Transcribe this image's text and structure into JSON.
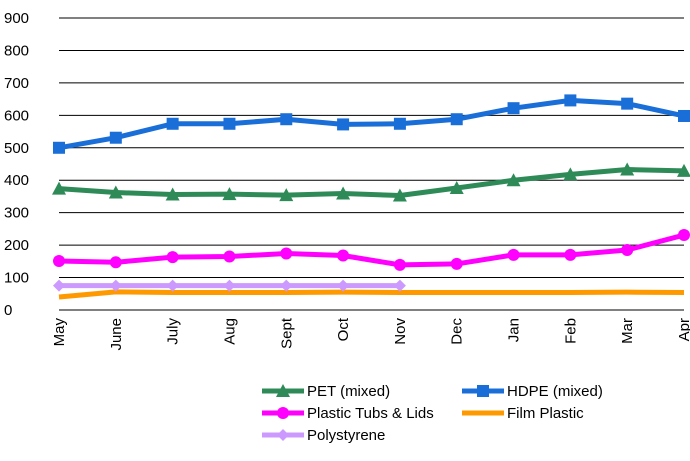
{
  "chart_data": {
    "type": "line",
    "title": "",
    "xlabel": "",
    "ylabel": "",
    "ylim": [
      0,
      900
    ],
    "yticks": [
      0,
      100,
      200,
      300,
      400,
      500,
      600,
      700,
      800,
      900
    ],
    "grid": true,
    "legend_position": "bottom",
    "categories": [
      "May",
      "June",
      "July",
      "Aug",
      "Sept",
      "Oct",
      "Nov",
      "Dec",
      "Jan",
      "Feb",
      "Mar",
      "Apr"
    ],
    "series": [
      {
        "name": "PET (mixed)",
        "color": "#2e8b57",
        "marker": "triangle",
        "values": [
          374,
          362,
          356,
          357,
          354,
          359,
          353,
          376,
          400,
          418,
          433,
          429
        ]
      },
      {
        "name": "HDPE (mixed)",
        "color": "#1a6ed8",
        "marker": "square",
        "values": [
          500,
          531,
          574,
          574,
          588,
          572,
          574,
          588,
          622,
          646,
          636,
          598
        ]
      },
      {
        "name": "Plastic Tubs & Lids",
        "color": "#ff00ff",
        "marker": "circle",
        "values": [
          151,
          147,
          163,
          165,
          174,
          168,
          139,
          142,
          170,
          170,
          185,
          231
        ]
      },
      {
        "name": "Film Plastic",
        "color": "#ff9900",
        "marker": "none",
        "values": [
          40,
          56,
          54,
          54,
          54,
          55,
          54,
          54,
          54,
          54,
          55,
          54
        ]
      },
      {
        "name": "Polystyrene",
        "color": "#cc99ff",
        "marker": "diamond",
        "values": [
          75,
          75,
          75,
          75,
          75,
          75,
          75,
          null,
          null,
          null,
          null,
          null
        ]
      }
    ]
  }
}
